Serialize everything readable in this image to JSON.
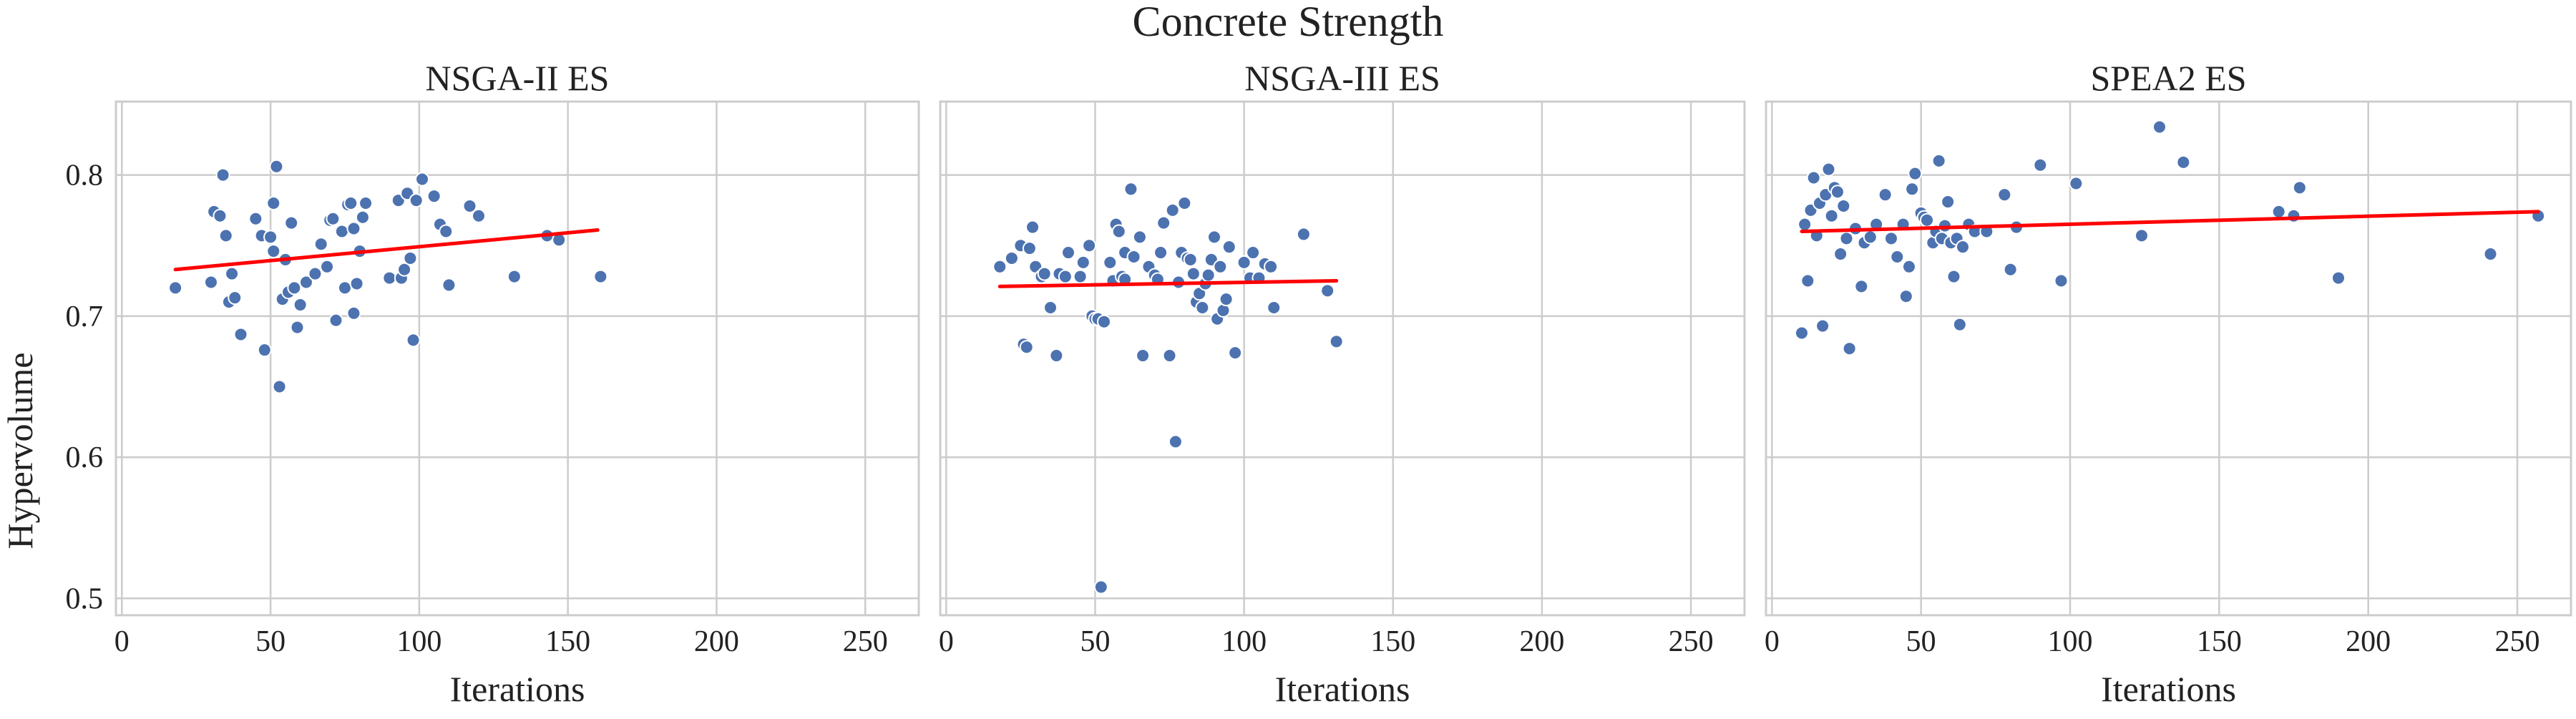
{
  "figure": {
    "suptitle": "Concrete Strength",
    "ylabel": "Hypervolume"
  },
  "colors": {
    "point": "#4c72b0",
    "point_edge": "#ffffff",
    "trend": "#ff0000",
    "grid": "#cccccc",
    "frame": "#cccccc"
  },
  "chart_data": [
    {
      "type": "scatter",
      "title": "NSGA-II ES",
      "xlabel": "Iterations",
      "ylabel": "Hypervolume",
      "xlim": [
        -2,
        268
      ],
      "ylim": [
        0.488,
        0.852
      ],
      "xticks": [
        0,
        50,
        100,
        150,
        200,
        250
      ],
      "yticks": [
        0.5,
        0.6,
        0.7,
        0.8
      ],
      "grid": true,
      "trend": {
        "x": [
          18,
          160
        ],
        "y": [
          0.733,
          0.761
        ]
      },
      "points": {
        "x": [
          18,
          30,
          31,
          33,
          34,
          35,
          36,
          37,
          38,
          40,
          45,
          47,
          48,
          50,
          51,
          51,
          52,
          53,
          54,
          55,
          56,
          57,
          58,
          59,
          60,
          62,
          65,
          67,
          69,
          70,
          71,
          72,
          74,
          75,
          76,
          77,
          78,
          78,
          79,
          80,
          81,
          82,
          90,
          93,
          94,
          95,
          96,
          97,
          98,
          99,
          101,
          105,
          107,
          109,
          110,
          117,
          120,
          132,
          143,
          147,
          161
        ],
        "y": [
          0.72,
          0.724,
          0.774,
          0.771,
          0.8,
          0.757,
          0.71,
          0.73,
          0.713,
          0.687,
          0.769,
          0.757,
          0.676,
          0.756,
          0.78,
          0.746,
          0.806,
          0.65,
          0.712,
          0.74,
          0.717,
          0.766,
          0.72,
          0.692,
          0.708,
          0.724,
          0.73,
          0.751,
          0.735,
          0.768,
          0.769,
          0.697,
          0.76,
          0.72,
          0.779,
          0.78,
          0.762,
          0.702,
          0.723,
          0.746,
          0.77,
          0.78,
          0.727,
          0.782,
          0.727,
          0.733,
          0.787,
          0.741,
          0.683,
          0.782,
          0.797,
          0.785,
          0.765,
          0.76,
          0.722,
          0.778,
          0.771,
          0.728,
          0.757,
          0.754,
          0.728
        ]
      }
    },
    {
      "type": "scatter",
      "title": "NSGA-III ES",
      "xlabel": "Iterations",
      "ylabel": "",
      "xlim": [
        -2,
        268
      ],
      "ylim": [
        0.488,
        0.852
      ],
      "xticks": [
        0,
        50,
        100,
        150,
        200,
        250
      ],
      "yticks": [
        0.5,
        0.6,
        0.7,
        0.8
      ],
      "grid": true,
      "trend": {
        "x": [
          18,
          131
        ],
        "y": [
          0.721,
          0.725
        ]
      },
      "points": {
        "x": [
          18,
          22,
          25,
          26,
          27,
          28,
          29,
          30,
          32,
          33,
          35,
          37,
          38,
          40,
          41,
          45,
          46,
          48,
          49,
          50,
          51,
          52,
          53,
          55,
          56,
          57,
          58,
          59,
          60,
          60,
          62,
          63,
          65,
          66,
          68,
          70,
          71,
          72,
          73,
          75,
          76,
          77,
          78,
          79,
          80,
          81,
          82,
          83,
          84,
          85,
          86,
          87,
          88,
          89,
          90,
          91,
          92,
          93,
          94,
          95,
          97,
          100,
          102,
          103,
          105,
          107,
          109,
          110,
          120,
          128,
          131
        ],
        "y": [
          0.735,
          0.741,
          0.75,
          0.68,
          0.678,
          0.748,
          0.763,
          0.735,
          0.728,
          0.73,
          0.706,
          0.672,
          0.73,
          0.728,
          0.745,
          0.728,
          0.738,
          0.75,
          0.7,
          0.698,
          0.698,
          0.508,
          0.696,
          0.738,
          0.725,
          0.765,
          0.76,
          0.728,
          0.726,
          0.745,
          0.79,
          0.742,
          0.756,
          0.672,
          0.735,
          0.729,
          0.726,
          0.745,
          0.766,
          0.672,
          0.775,
          0.611,
          0.724,
          0.745,
          0.78,
          0.741,
          0.74,
          0.73,
          0.71,
          0.716,
          0.706,
          0.723,
          0.729,
          0.74,
          0.756,
          0.698,
          0.735,
          0.704,
          0.712,
          0.749,
          0.674,
          0.738,
          0.727,
          0.745,
          0.727,
          0.737,
          0.735,
          0.706,
          0.758,
          0.718,
          0.682
        ]
      }
    },
    {
      "type": "scatter",
      "title": "SPEA2 ES",
      "xlabel": "Iterations",
      "ylabel": "",
      "xlim": [
        -2,
        268
      ],
      "ylim": [
        0.488,
        0.852
      ],
      "xticks": [
        0,
        50,
        100,
        150,
        200,
        250
      ],
      "yticks": [
        0.5,
        0.6,
        0.7,
        0.8
      ],
      "grid": true,
      "trend": {
        "x": [
          10,
          257
        ],
        "y": [
          0.76,
          0.774
        ]
      },
      "points": {
        "x": [
          10,
          11,
          12,
          13,
          14,
          15,
          16,
          17,
          18,
          19,
          20,
          21,
          22,
          23,
          24,
          25,
          26,
          28,
          30,
          31,
          33,
          35,
          38,
          40,
          42,
          44,
          45,
          46,
          47,
          48,
          50,
          51,
          52,
          54,
          55,
          56,
          57,
          58,
          59,
          60,
          61,
          62,
          63,
          64,
          66,
          68,
          72,
          78,
          80,
          82,
          90,
          97,
          102,
          124,
          130,
          138,
          170,
          175,
          177,
          190,
          241,
          257
        ],
        "y": [
          0.688,
          0.765,
          0.725,
          0.775,
          0.798,
          0.757,
          0.78,
          0.693,
          0.786,
          0.804,
          0.771,
          0.791,
          0.788,
          0.744,
          0.778,
          0.755,
          0.677,
          0.762,
          0.721,
          0.752,
          0.756,
          0.765,
          0.786,
          0.755,
          0.742,
          0.765,
          0.714,
          0.735,
          0.79,
          0.801,
          0.773,
          0.77,
          0.768,
          0.752,
          0.76,
          0.81,
          0.755,
          0.764,
          0.781,
          0.752,
          0.728,
          0.755,
          0.694,
          0.749,
          0.765,
          0.76,
          0.76,
          0.786,
          0.733,
          0.763,
          0.807,
          0.725,
          0.794,
          0.757,
          0.834,
          0.809,
          0.774,
          0.771,
          0.791,
          0.727,
          0.744,
          0.771
        ]
      }
    }
  ]
}
